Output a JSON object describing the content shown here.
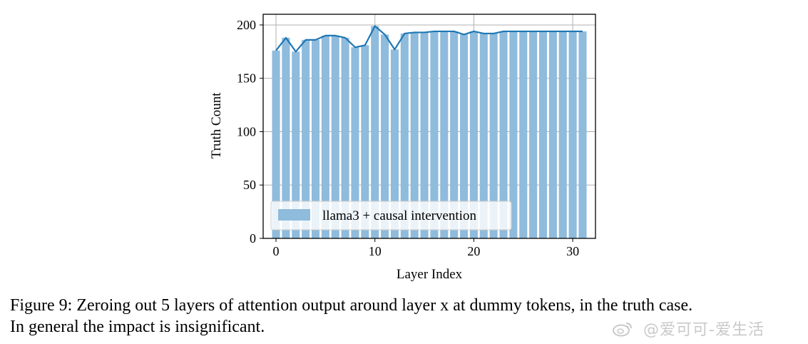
{
  "chart_data": {
    "type": "bar",
    "x": [
      0,
      1,
      2,
      3,
      4,
      5,
      6,
      7,
      8,
      9,
      10,
      11,
      12,
      13,
      14,
      15,
      16,
      17,
      18,
      19,
      20,
      21,
      22,
      23,
      24,
      25,
      26,
      27,
      28,
      29,
      30,
      31
    ],
    "series": [
      {
        "name": "llama3 + causal intervention",
        "values": [
          176,
          188,
          175,
          186,
          186,
          190,
          190,
          188,
          179,
          181,
          199,
          191,
          177,
          192,
          193,
          193,
          194,
          194,
          194,
          191,
          194,
          192,
          192,
          194,
          194,
          194,
          194,
          194,
          194,
          194,
          194,
          194
        ]
      }
    ],
    "xlabel": "Layer Index",
    "ylabel": "Truth Count",
    "xlim": [
      -1.3,
      32.3
    ],
    "ylim": [
      0,
      210
    ],
    "xticks": [
      0,
      10,
      20,
      30
    ],
    "yticks": [
      0,
      50,
      100,
      150,
      200
    ],
    "grid": true,
    "legend_position": "lower-left",
    "colors": {
      "bar": "#8fbbdc",
      "line": "#1f77b4"
    }
  },
  "caption": {
    "line1": "Figure 9: Zeroing out 5 layers of attention output around layer x at dummy tokens, in the truth case.",
    "line2": "In general the impact is insignificant."
  },
  "watermark": {
    "text": "@爱可可-爱生活"
  }
}
